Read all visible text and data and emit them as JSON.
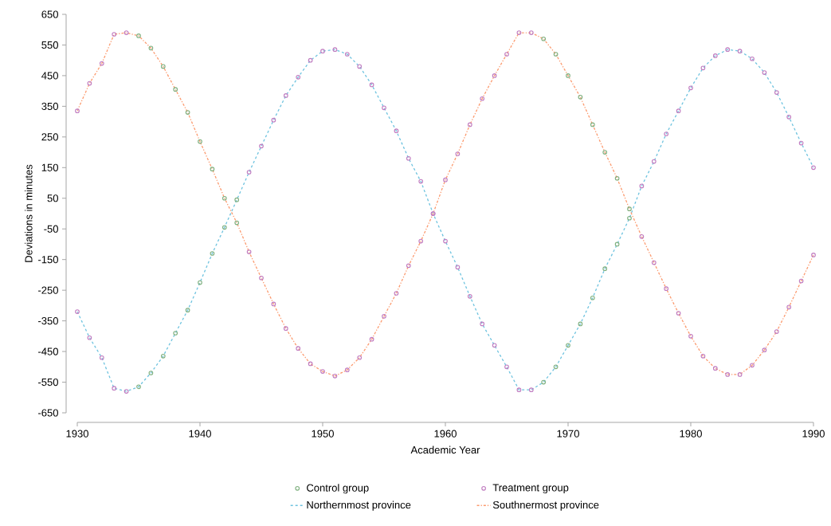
{
  "chart_data": {
    "type": "scatter",
    "xlabel": "Academic Year",
    "ylabel": "Deviations in minutes",
    "xlim": [
      1930,
      1990
    ],
    "ylim": [
      -650,
      650
    ],
    "xticks": [
      1930,
      1940,
      1950,
      1960,
      1970,
      1980,
      1990
    ],
    "yticks": [
      -650,
      -550,
      -450,
      -350,
      -250,
      -150,
      -50,
      50,
      150,
      250,
      350,
      450,
      550,
      650
    ],
    "grid": false,
    "legend": "bottom",
    "marker": "circle",
    "series": [
      {
        "name": "Control group",
        "color": "#7fb07f",
        "x": [
          1935,
          1935,
          1936,
          1936,
          1937,
          1937,
          1938,
          1938,
          1939,
          1939,
          1940,
          1940,
          1941,
          1941,
          1942,
          1942,
          1943,
          1943,
          1968,
          1968,
          1969,
          1969,
          1970,
          1970,
          1971,
          1971,
          1972,
          1972,
          1973,
          1973,
          1974,
          1974,
          1975,
          1975
        ],
        "values": [
          580,
          -565,
          540,
          -520,
          480,
          -465,
          405,
          -390,
          330,
          -315,
          235,
          -225,
          145,
          -130,
          50,
          -45,
          -30,
          45,
          570,
          -550,
          520,
          -500,
          450,
          -430,
          380,
          -360,
          290,
          -275,
          200,
          -180,
          115,
          -100,
          15,
          -15
        ]
      },
      {
        "name": "Treatment group",
        "color": "#c07cc0",
        "x": [
          1930,
          1930,
          1931,
          1931,
          1932,
          1932,
          1933,
          1933,
          1934,
          1934,
          1944,
          1944,
          1945,
          1945,
          1946,
          1946,
          1947,
          1947,
          1948,
          1948,
          1949,
          1949,
          1950,
          1950,
          1951,
          1951,
          1952,
          1952,
          1953,
          1953,
          1954,
          1954,
          1955,
          1955,
          1956,
          1956,
          1957,
          1957,
          1958,
          1958,
          1959,
          1959,
          1960,
          1960,
          1961,
          1961,
          1962,
          1962,
          1963,
          1963,
          1964,
          1964,
          1965,
          1965,
          1966,
          1966,
          1967,
          1967,
          1976,
          1976,
          1977,
          1977,
          1978,
          1978,
          1979,
          1979,
          1980,
          1980,
          1981,
          1981,
          1982,
          1982,
          1983,
          1983,
          1984,
          1984,
          1985,
          1985,
          1986,
          1986,
          1987,
          1987,
          1988,
          1988,
          1989,
          1989,
          1990,
          1990
        ],
        "values": [
          335,
          -320,
          425,
          -405,
          490,
          -470,
          585,
          -570,
          590,
          -580,
          -125,
          135,
          -210,
          220,
          -295,
          305,
          -375,
          385,
          -440,
          445,
          -490,
          500,
          -515,
          530,
          -530,
          535,
          -510,
          520,
          -470,
          480,
          -410,
          420,
          -335,
          345,
          -260,
          270,
          -170,
          180,
          -90,
          105,
          0,
          0,
          110,
          -90,
          195,
          -175,
          290,
          -270,
          375,
          -360,
          450,
          -430,
          520,
          -500,
          590,
          -575,
          590,
          -575,
          -75,
          90,
          -160,
          170,
          -245,
          260,
          -325,
          335,
          -400,
          410,
          -465,
          475,
          -505,
          515,
          -525,
          535,
          -525,
          530,
          -495,
          505,
          -445,
          460,
          -385,
          395,
          -305,
          315,
          -220,
          230,
          -135,
          150
        ]
      },
      {
        "name": "Northernmost province",
        "type": "line",
        "marker": "none",
        "color": "#6ec3df",
        "line_style": "dashed",
        "x": [
          1930,
          1931,
          1932,
          1933,
          1934,
          1935,
          1936,
          1937,
          1938,
          1939,
          1940,
          1941,
          1942,
          1943,
          1944,
          1945,
          1946,
          1947,
          1948,
          1949,
          1950,
          1951,
          1952,
          1953,
          1954,
          1955,
          1956,
          1957,
          1958,
          1959,
          1960,
          1961,
          1962,
          1963,
          1964,
          1965,
          1966,
          1967,
          1968,
          1969,
          1970,
          1971,
          1972,
          1973,
          1974,
          1975,
          1976,
          1977,
          1978,
          1979,
          1980,
          1981,
          1982,
          1983,
          1984,
          1985,
          1986,
          1987,
          1988,
          1989,
          1990
        ],
        "values": [
          -320,
          -405,
          -470,
          -570,
          -580,
          -565,
          -520,
          -465,
          -390,
          -315,
          -225,
          -130,
          -45,
          45,
          135,
          220,
          305,
          385,
          445,
          500,
          530,
          535,
          520,
          480,
          420,
          345,
          270,
          180,
          105,
          0,
          -90,
          -175,
          -270,
          -360,
          -430,
          -500,
          -575,
          -575,
          -550,
          -500,
          -430,
          -360,
          -275,
          -180,
          -100,
          -15,
          90,
          170,
          260,
          335,
          410,
          475,
          515,
          535,
          530,
          505,
          460,
          395,
          315,
          230,
          150
        ]
      },
      {
        "name": "Southnermost province",
        "type": "line",
        "marker": "none",
        "color": "#fc9a6e",
        "line_style": "dashdot",
        "x": [
          1930,
          1931,
          1932,
          1933,
          1934,
          1935,
          1936,
          1937,
          1938,
          1939,
          1940,
          1941,
          1942,
          1943,
          1944,
          1945,
          1946,
          1947,
          1948,
          1949,
          1950,
          1951,
          1952,
          1953,
          1954,
          1955,
          1956,
          1957,
          1958,
          1959,
          1960,
          1961,
          1962,
          1963,
          1964,
          1965,
          1966,
          1967,
          1968,
          1969,
          1970,
          1971,
          1972,
          1973,
          1974,
          1975,
          1976,
          1977,
          1978,
          1979,
          1980,
          1981,
          1982,
          1983,
          1984,
          1985,
          1986,
          1987,
          1988,
          1989,
          1990
        ],
        "values": [
          335,
          425,
          490,
          585,
          590,
          580,
          540,
          480,
          405,
          330,
          235,
          145,
          50,
          -30,
          -125,
          -210,
          -295,
          -375,
          -440,
          -490,
          -515,
          -530,
          -510,
          -470,
          -410,
          -335,
          -260,
          -170,
          -90,
          0,
          110,
          195,
          290,
          375,
          450,
          520,
          590,
          590,
          570,
          520,
          450,
          380,
          290,
          200,
          115,
          15,
          -75,
          -160,
          -245,
          -325,
          -400,
          -465,
          -505,
          -525,
          -525,
          -495,
          -445,
          -385,
          -305,
          -220,
          -135
        ]
      }
    ]
  }
}
